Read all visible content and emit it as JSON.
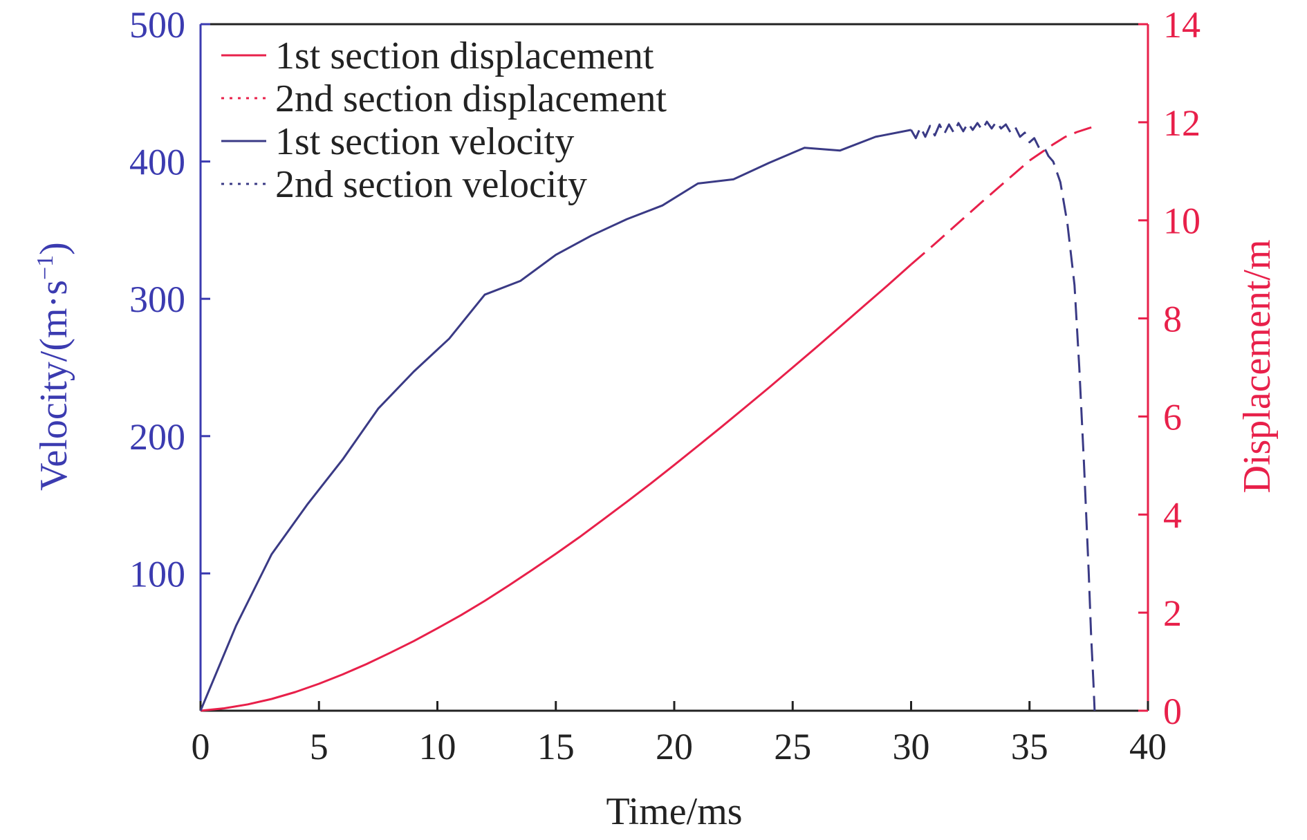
{
  "chart_data": {
    "type": "line",
    "title": "",
    "xlabel": "Time/ms",
    "ylabel_left": "Velocity/(m·s",
    "ylabel_left_sup": "−1",
    "ylabel_left_close": ")",
    "ylabel_right": "Displacement/m",
    "xlim": [
      0,
      40
    ],
    "ylim_left": [
      0,
      500
    ],
    "ylim_right": [
      0,
      14
    ],
    "x_ticks": [
      "0",
      "5",
      "10",
      "15",
      "20",
      "25",
      "30",
      "35",
      "40"
    ],
    "y_left_ticks": [
      "100",
      "200",
      "300",
      "400",
      "500"
    ],
    "y_right_ticks": [
      "0",
      "2",
      "4",
      "6",
      "8",
      "10",
      "12",
      "14"
    ],
    "grid": false,
    "legend_position": "top-left",
    "colors": {
      "velocity": "#3a3a85",
      "displacement": "#e8204a",
      "left_axis": "#3b3bb0",
      "right_axis": "#e8204a",
      "frame": "#222222"
    },
    "series": [
      {
        "name": "1st section displacement",
        "axis": "right",
        "style": "solid",
        "x": [
          0,
          1,
          2,
          3,
          4,
          5,
          6,
          7,
          8,
          9,
          10,
          11,
          12,
          13,
          14,
          15,
          16,
          17,
          18,
          19,
          20,
          21,
          22,
          23,
          24,
          25,
          26,
          27,
          28,
          29,
          30
        ],
        "y": [
          0,
          0.05,
          0.13,
          0.24,
          0.38,
          0.55,
          0.74,
          0.95,
          1.18,
          1.42,
          1.68,
          1.95,
          2.24,
          2.55,
          2.87,
          3.2,
          3.54,
          3.9,
          4.26,
          4.63,
          5.01,
          5.4,
          5.79,
          6.19,
          6.59,
          7.0,
          7.41,
          7.83,
          8.25,
          8.67,
          9.1
        ]
      },
      {
        "name": "2nd section displacement",
        "axis": "right",
        "style": "dashed",
        "x": [
          30,
          31,
          32,
          33,
          34,
          35,
          36,
          36.5,
          37,
          37.5,
          37.8
        ],
        "y": [
          9.1,
          9.52,
          9.95,
          10.38,
          10.8,
          11.22,
          11.55,
          11.7,
          11.8,
          11.88,
          11.92
        ]
      },
      {
        "name": "1st section velocity",
        "axis": "left",
        "style": "solid",
        "x": [
          0,
          1.5,
          3,
          4.5,
          6,
          7.5,
          9,
          10.5,
          12,
          13.5,
          15,
          16.5,
          18,
          19.5,
          21,
          22.5,
          24,
          25.5,
          27,
          28.5,
          30
        ],
        "y": [
          0,
          62,
          114,
          150,
          183,
          220,
          247,
          271,
          303,
          313,
          332,
          346,
          358,
          368,
          384,
          387,
          399,
          410,
          408,
          418,
          423
        ]
      },
      {
        "name": "2nd section velocity",
        "axis": "left",
        "style": "dashed",
        "x": [
          30,
          30.2,
          30.4,
          30.6,
          30.8,
          31,
          31.2,
          31.4,
          31.6,
          31.8,
          32,
          32.2,
          32.4,
          32.6,
          32.8,
          33,
          33.2,
          33.4,
          33.6,
          33.8,
          34,
          34.2,
          34.4,
          34.6,
          34.8,
          35,
          35.2,
          35.4,
          35.6,
          35.8,
          36,
          36.3,
          36.6,
          36.9,
          37.1,
          37.3,
          37.5,
          37.6,
          37.7,
          37.75
        ],
        "y": [
          423,
          417,
          425,
          418,
          426,
          419,
          427,
          420,
          427,
          421,
          428,
          422,
          428,
          423,
          428,
          423,
          429,
          424,
          429,
          424,
          427,
          421,
          425,
          418,
          421,
          414,
          417,
          410,
          411,
          404,
          400,
          385,
          355,
          310,
          250,
          180,
          100,
          55,
          20,
          0
        ]
      }
    ]
  }
}
